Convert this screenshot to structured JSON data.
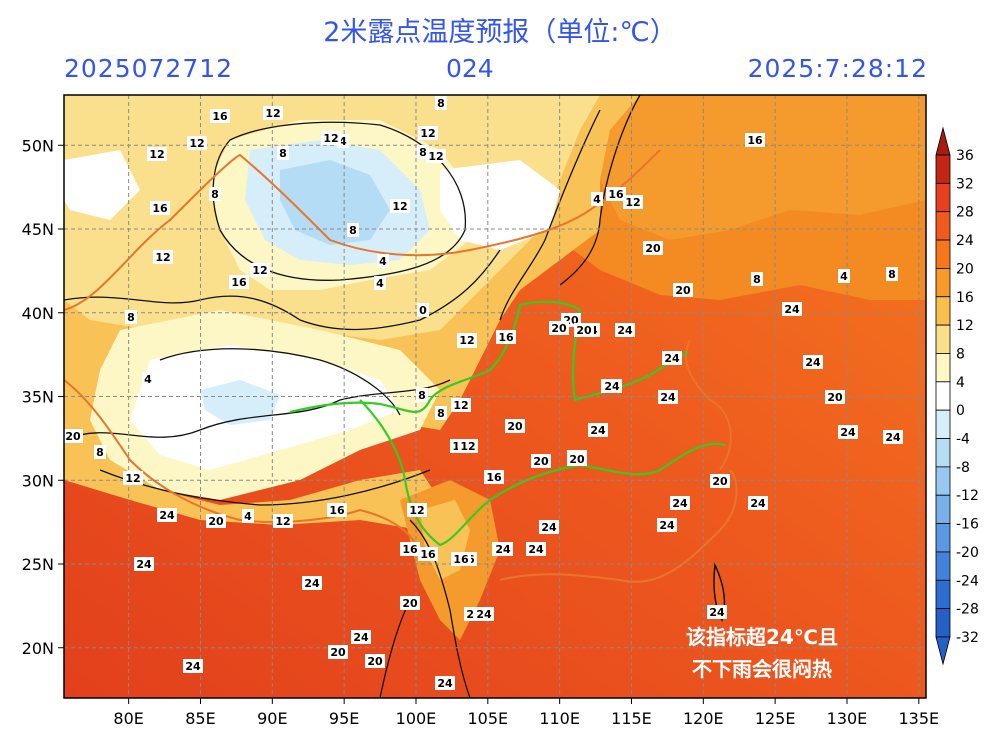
{
  "header": {
    "title": "2米露点温度预报（单位:℃）",
    "init_time": "2025072712",
    "lead_hours": "024",
    "valid_time": "2025:7:28:12"
  },
  "map": {
    "lon_ticks": [
      "80E",
      "85E",
      "90E",
      "95E",
      "100E",
      "105E",
      "110E",
      "115E",
      "120E",
      "125E",
      "130E",
      "135E"
    ],
    "lat_ticks": [
      "50N",
      "45N",
      "40N",
      "35N",
      "30N",
      "25N",
      "20N"
    ],
    "lon_range": [
      75.5,
      135.5
    ],
    "lat_range": [
      17,
      53
    ],
    "annotation": [
      "该指标超24℃且",
      "不下雨会很闷热"
    ]
  },
  "colorbar": {
    "labels": [
      "36",
      "32",
      "28",
      "24",
      "20",
      "16",
      "12",
      "8",
      "4",
      "0",
      "-4",
      "-8",
      "-12",
      "-16",
      "-20",
      "-24",
      "-28",
      "-32"
    ],
    "colors": [
      "#a81c10",
      "#c42614",
      "#e8401e",
      "#f05a1c",
      "#f4781a",
      "#f79a28",
      "#f8bf4c",
      "#fadf8a",
      "#fdf7c4",
      "#ffffff",
      "#d6eefa",
      "#b4dcf4",
      "#96c8f0",
      "#78b0ea",
      "#5a98e2",
      "#4282da",
      "#2c6ecf",
      "#2460c8"
    ]
  },
  "contour_labels": [
    "16",
    "12",
    "12",
    "4",
    "8",
    "8",
    "12",
    "16",
    "16",
    "12",
    "4",
    "4",
    "8",
    "12",
    "12",
    "8",
    "12",
    "12",
    "16",
    "16",
    "12",
    "4",
    "8",
    "12",
    "8",
    "4",
    "12",
    "16",
    "20",
    "20",
    "24",
    "20",
    "24",
    "20",
    "24",
    "8",
    "4",
    "8",
    "20",
    "24",
    "24",
    "24",
    "24",
    "20",
    "24",
    "24",
    "24",
    "20",
    "16",
    "24",
    "16",
    "8",
    "24",
    "24",
    "20",
    "24",
    "24",
    "12",
    "8",
    "20",
    "20",
    "12",
    "24",
    "24",
    "20",
    "20",
    "24",
    "24",
    "24",
    "4",
    "12",
    "16",
    "20",
    "16",
    "16",
    "24",
    "12",
    "20",
    "24",
    "16",
    "22",
    "24",
    "24",
    "20",
    "24",
    "8",
    "12",
    "0",
    "24",
    "16",
    "12",
    "20",
    "20"
  ]
}
